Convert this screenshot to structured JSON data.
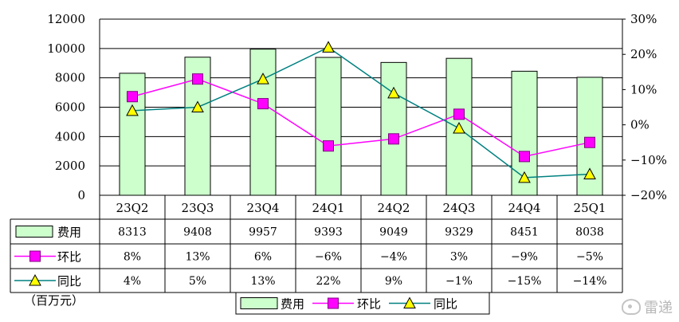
{
  "chart_data": {
    "type": "bar",
    "categories": [
      "23Q2",
      "23Q3",
      "23Q4",
      "24Q1",
      "24Q2",
      "24Q3",
      "24Q4",
      "25Q1"
    ],
    "unit_label": "（百万元）",
    "series": [
      {
        "name": "费用",
        "kind": "bar",
        "axis": "left",
        "color": "#ccffcc",
        "values": [
          8313,
          9408,
          9957,
          9393,
          9049,
          9329,
          8451,
          8038
        ],
        "row_labels": [
          "8313",
          "9408",
          "9957",
          "9393",
          "9049",
          "9329",
          "8451",
          "8038"
        ]
      },
      {
        "name": "环比",
        "kind": "line",
        "axis": "right",
        "color": "#ff00ff",
        "marker": "square",
        "values": [
          8,
          13,
          6,
          -6,
          -4,
          3,
          -9,
          -5
        ],
        "row_labels": [
          "8%",
          "13%",
          "6%",
          "−6%",
          "−4%",
          "3%",
          "−9%",
          "−5%"
        ]
      },
      {
        "name": "同比",
        "kind": "line",
        "axis": "right",
        "color": "#008080",
        "marker": "triangle",
        "marker_color": "#ffff00",
        "values": [
          4,
          5,
          13,
          22,
          9,
          -1,
          -15,
          -14
        ],
        "row_labels": [
          "4%",
          "5%",
          "13%",
          "22%",
          "9%",
          "−1%",
          "−15%",
          "−14%"
        ]
      }
    ],
    "y_left": {
      "range": [
        0,
        12000
      ],
      "ticks": [
        "0",
        "2000",
        "4000",
        "6000",
        "8000",
        "10000",
        "12000"
      ]
    },
    "y_right": {
      "range": [
        -20,
        30
      ],
      "ticks": [
        "−20%",
        "−10%",
        "0%",
        "10%",
        "20%",
        "30%"
      ]
    },
    "grid": true,
    "legend_position": "bottom"
  },
  "watermark": {
    "text": "雷递"
  }
}
